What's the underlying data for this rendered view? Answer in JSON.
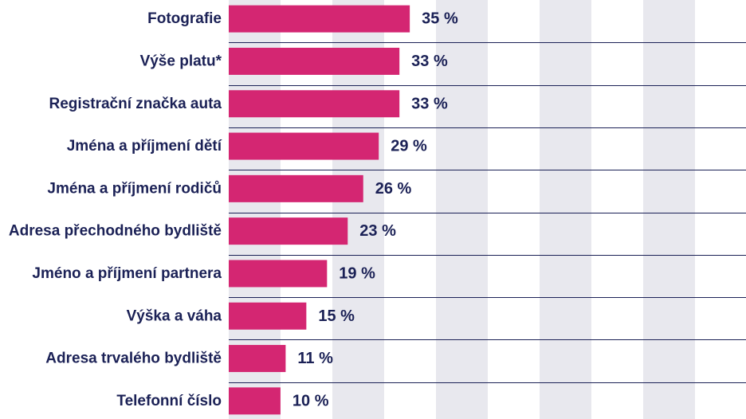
{
  "chart_data": {
    "type": "bar",
    "orientation": "horizontal",
    "categories": [
      "Fotografie",
      "Výše platu*",
      "Registrační značka auta",
      "Jména a příjmení dětí",
      "Jména a příjmení rodičů",
      "Adresa přechodného bydliště",
      "Jméno a příjmení partnera",
      "Výška a váha",
      "Adresa trvalého bydliště",
      "Telefonní číslo"
    ],
    "values": [
      35,
      33,
      33,
      29,
      26,
      23,
      19,
      15,
      11,
      10
    ],
    "value_labels": [
      "35 %",
      "33 %",
      "33 %",
      "29 %",
      "26 %",
      "23 %",
      "19 %",
      "15 %",
      "11 %",
      "10 %"
    ],
    "xlim": [
      0,
      50
    ],
    "grid": "alternating vertical bands",
    "colors": {
      "bar": "#d42672",
      "text": "#1b2156",
      "band": "#e8e8ee",
      "divider": "#1b2156",
      "background": "#ffffff"
    }
  }
}
